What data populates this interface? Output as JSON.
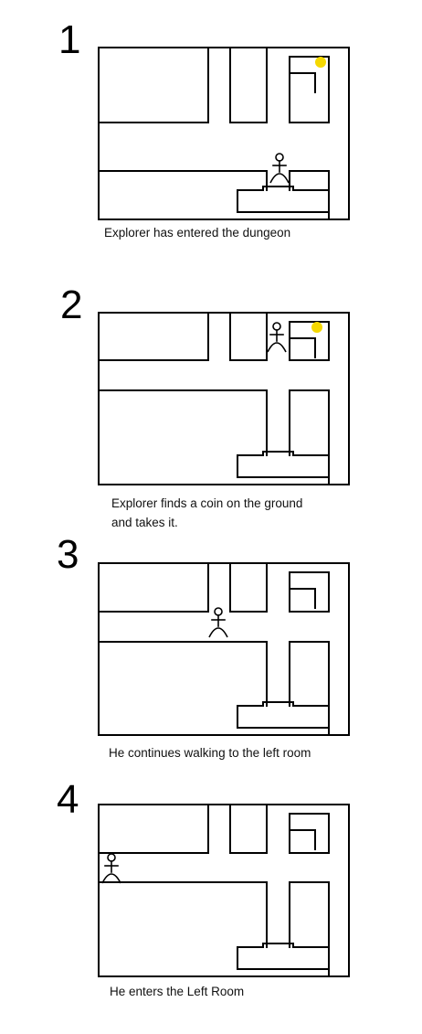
{
  "panels": [
    {
      "number": "1",
      "caption": [
        "Explorer has entered the dungeon"
      ],
      "explorer_location": "lower corridor above platform",
      "coin_visible": true
    },
    {
      "number": "2",
      "caption": [
        "Explorer finds a coin on the ground",
        "and takes it."
      ],
      "explorer_location": "upper-right room with coin",
      "coin_visible": true
    },
    {
      "number": "3",
      "caption": [
        "He continues walking to the left room"
      ],
      "explorer_location": "horizontal corridor",
      "coin_visible": false
    },
    {
      "number": "4",
      "caption": [
        "He enters the Left Room"
      ],
      "explorer_location": "left room entrance",
      "coin_visible": false
    }
  ],
  "colors": {
    "line": "#000000",
    "coin": "#f5d800",
    "background": "#ffffff"
  }
}
